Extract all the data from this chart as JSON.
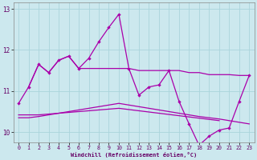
{
  "xlabel": "Windchill (Refroidissement éolien,°C)",
  "xlim": [
    -0.5,
    23.5
  ],
  "ylim": [
    9.75,
    13.15
  ],
  "yticks": [
    10,
    11,
    12,
    13
  ],
  "xticks": [
    0,
    1,
    2,
    3,
    4,
    5,
    6,
    7,
    8,
    9,
    10,
    11,
    12,
    13,
    14,
    15,
    16,
    17,
    18,
    19,
    20,
    21,
    22,
    23
  ],
  "bg_color": "#cce8ee",
  "grid_color": "#aad4dc",
  "line_color": "#aa00aa",
  "line1_x": [
    0,
    1,
    2,
    3,
    4,
    5,
    6,
    7,
    8,
    9,
    10,
    11,
    12,
    13,
    14,
    15,
    16,
    17,
    18,
    19,
    20,
    21,
    22,
    23
  ],
  "line1_y": [
    10.7,
    11.1,
    11.65,
    11.45,
    11.75,
    11.85,
    11.55,
    11.8,
    12.2,
    12.55,
    12.87,
    11.55,
    10.9,
    11.1,
    11.15,
    11.5,
    10.75,
    10.2,
    9.68,
    9.9,
    10.05,
    10.1,
    10.75,
    11.38
  ],
  "line2_x": [
    1,
    2,
    3,
    4,
    5,
    6,
    7,
    8,
    9,
    10,
    11,
    12,
    13,
    14,
    15,
    16,
    17,
    18,
    19,
    20,
    21,
    22,
    23
  ],
  "line2_y": [
    11.1,
    11.65,
    11.45,
    11.75,
    11.85,
    11.55,
    11.55,
    11.55,
    11.55,
    11.55,
    11.55,
    11.5,
    11.5,
    11.5,
    11.5,
    11.5,
    11.45,
    11.45,
    11.4,
    11.4,
    11.4,
    11.38,
    11.38
  ],
  "line3_x": [
    0,
    1,
    2,
    3,
    4,
    5,
    6,
    7,
    8,
    9,
    10,
    11,
    12,
    13,
    14,
    15,
    16,
    17,
    18,
    19,
    20,
    21,
    22,
    23
  ],
  "line3_y": [
    10.35,
    10.35,
    10.38,
    10.42,
    10.46,
    10.5,
    10.54,
    10.58,
    10.62,
    10.66,
    10.7,
    10.66,
    10.62,
    10.58,
    10.54,
    10.5,
    10.46,
    10.42,
    10.38,
    10.35,
    10.32,
    10.28,
    10.24,
    10.2
  ],
  "line4_x": [
    0,
    1,
    2,
    3,
    4,
    5,
    6,
    7,
    8,
    9,
    10,
    11,
    12,
    13,
    14,
    15,
    16,
    17,
    18,
    19,
    20
  ],
  "line4_y": [
    10.42,
    10.42,
    10.42,
    10.44,
    10.46,
    10.48,
    10.5,
    10.52,
    10.54,
    10.56,
    10.58,
    10.55,
    10.52,
    10.49,
    10.46,
    10.43,
    10.4,
    10.37,
    10.34,
    10.31,
    10.28
  ]
}
